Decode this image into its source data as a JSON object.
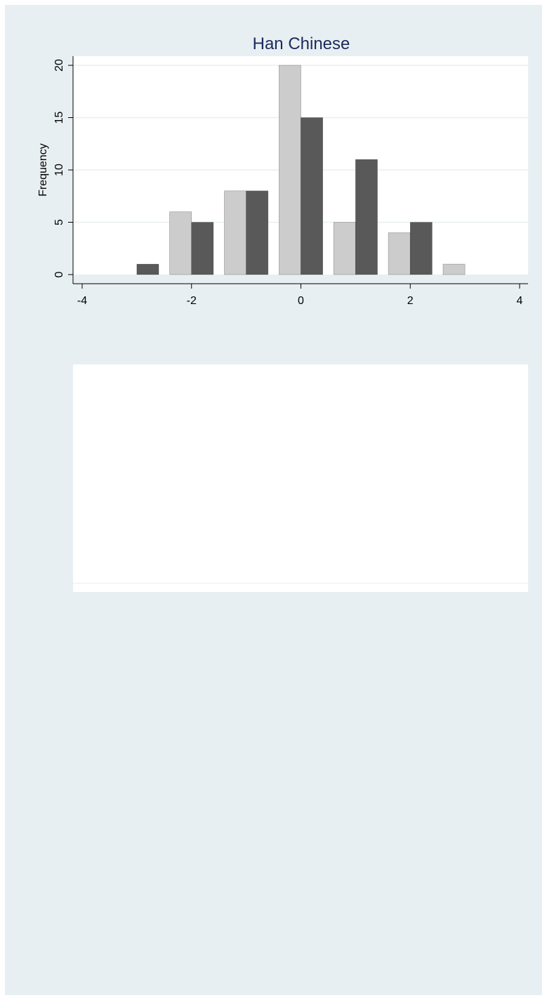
{
  "chart_data": {
    "type": "bar",
    "title": "Han Chinese",
    "xlabel": "",
    "ylabel": "Frequency",
    "x_ticks": [
      "-4",
      "-2",
      "0",
      "2",
      "4"
    ],
    "x_tick_values": [
      -4,
      -2,
      0,
      2,
      4
    ],
    "y_ticks": [
      "0",
      "5",
      "10",
      "15",
      "20"
    ],
    "y_tick_values": [
      0,
      5,
      10,
      15,
      20
    ],
    "xlim": [
      -4,
      4
    ],
    "ylim": [
      0,
      20
    ],
    "grid": true,
    "bar_width": 0.4,
    "series": [
      {
        "color": "#cccccc",
        "bars": [
          {
            "x": -2.2,
            "value": 6
          },
          {
            "x": -1.2,
            "value": 8
          },
          {
            "x": -0.2,
            "value": 20
          },
          {
            "x": 0.8,
            "value": 5
          },
          {
            "x": 1.8,
            "value": 4
          },
          {
            "x": 2.8,
            "value": 1
          }
        ]
      },
      {
        "color": "#595959",
        "bars": [
          {
            "x": -2.8,
            "value": 1
          },
          {
            "x": -1.8,
            "value": 5
          },
          {
            "x": -0.8,
            "value": 8
          },
          {
            "x": 0.2,
            "value": 15
          },
          {
            "x": 1.2,
            "value": 11
          },
          {
            "x": 2.2,
            "value": 5
          }
        ]
      }
    ]
  },
  "colors": {
    "page_background": "#e8eff2",
    "plot_background": "#ffffff",
    "title": "#1a2b5c",
    "gridline": "#e8eff2",
    "axis": "#000000"
  }
}
